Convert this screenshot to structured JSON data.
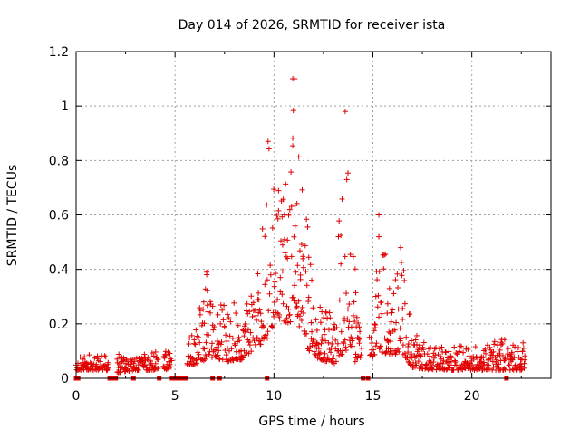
{
  "chart_data": {
    "type": "scatter",
    "title": "Day 014 of 2026, SRMTID for receiver ista",
    "xlabel": "GPS time / hours",
    "ylabel": "SRMTID / TECUs",
    "xlim": [
      0,
      24
    ],
    "ylim": [
      0,
      1.2
    ],
    "xticks": [
      0,
      5,
      10,
      15,
      20
    ],
    "xtick_labels": [
      "0",
      "5",
      "10",
      "15",
      "20"
    ],
    "yticks": [
      0,
      0.2,
      0.4,
      0.6,
      0.8,
      1.0,
      1.2
    ],
    "ytick_labels": [
      "0",
      "0.2",
      "0.4",
      "0.6",
      "0.8",
      "1",
      "1.2"
    ],
    "grid": true,
    "marker": "+",
    "color": "#e00000",
    "series": [
      {
        "name": "SRMTID",
        "envelope": [
          {
            "x": 0.0,
            "base": 0.03,
            "peak": 0.1
          },
          {
            "x": 1.5,
            "base": 0.03,
            "peak": 0.09
          },
          {
            "x": 2.0,
            "base": 0.02,
            "peak": 0.09
          },
          {
            "x": 3.0,
            "base": 0.03,
            "peak": 0.09
          },
          {
            "x": 4.5,
            "base": 0.03,
            "peak": 0.1
          },
          {
            "x": 5.0,
            "base": 0.05,
            "peak": 0.16
          },
          {
            "x": 6.0,
            "base": 0.05,
            "peak": 0.18
          },
          {
            "x": 6.6,
            "base": 0.07,
            "peak": 0.39
          },
          {
            "x": 7.0,
            "base": 0.08,
            "peak": 0.28
          },
          {
            "x": 7.5,
            "base": 0.06,
            "peak": 0.3
          },
          {
            "x": 8.5,
            "base": 0.07,
            "peak": 0.26
          },
          {
            "x": 9.0,
            "base": 0.1,
            "peak": 0.35
          },
          {
            "x": 9.7,
            "base": 0.15,
            "peak": 0.87
          },
          {
            "x": 10.2,
            "base": 0.22,
            "peak": 0.75
          },
          {
            "x": 10.8,
            "base": 0.2,
            "peak": 0.82
          },
          {
            "x": 11.0,
            "base": 0.25,
            "peak": 1.1
          },
          {
            "x": 11.6,
            "base": 0.12,
            "peak": 0.7
          },
          {
            "x": 12.0,
            "base": 0.08,
            "peak": 0.3
          },
          {
            "x": 13.0,
            "base": 0.05,
            "peak": 0.26
          },
          {
            "x": 13.6,
            "base": 0.1,
            "peak": 0.98
          },
          {
            "x": 14.0,
            "base": 0.05,
            "peak": 0.5
          },
          {
            "x": 14.5,
            "base": 0.05,
            "peak": 0.14
          },
          {
            "x": 15.0,
            "base": 0.08,
            "peak": 0.17
          },
          {
            "x": 15.3,
            "base": 0.1,
            "peak": 0.6
          },
          {
            "x": 16.0,
            "base": 0.08,
            "peak": 0.3
          },
          {
            "x": 16.4,
            "base": 0.1,
            "peak": 0.48
          },
          {
            "x": 17.0,
            "base": 0.04,
            "peak": 0.17
          },
          {
            "x": 18.0,
            "base": 0.03,
            "peak": 0.12
          },
          {
            "x": 20.0,
            "base": 0.03,
            "peak": 0.12
          },
          {
            "x": 21.7,
            "base": 0.03,
            "peak": 0.15
          },
          {
            "x": 22.7,
            "base": 0.03,
            "peak": 0.13
          }
        ],
        "notable_points": [
          {
            "x": 10.95,
            "y": 1.1
          },
          {
            "x": 11.05,
            "y": 1.1
          },
          {
            "x": 13.6,
            "y": 0.98
          },
          {
            "x": 9.7,
            "y": 0.87
          },
          {
            "x": 15.3,
            "y": 0.6
          },
          {
            "x": 16.4,
            "y": 0.48
          },
          {
            "x": 6.6,
            "y": 0.39
          }
        ],
        "data_gaps_at_zero": [
          0.0,
          0.05,
          0.1,
          1.7,
          1.85,
          2.0,
          2.9,
          4.2,
          4.85,
          5.05,
          5.2,
          5.4,
          5.55,
          6.9,
          7.25,
          9.65,
          14.5,
          14.75,
          21.75
        ]
      }
    ]
  }
}
